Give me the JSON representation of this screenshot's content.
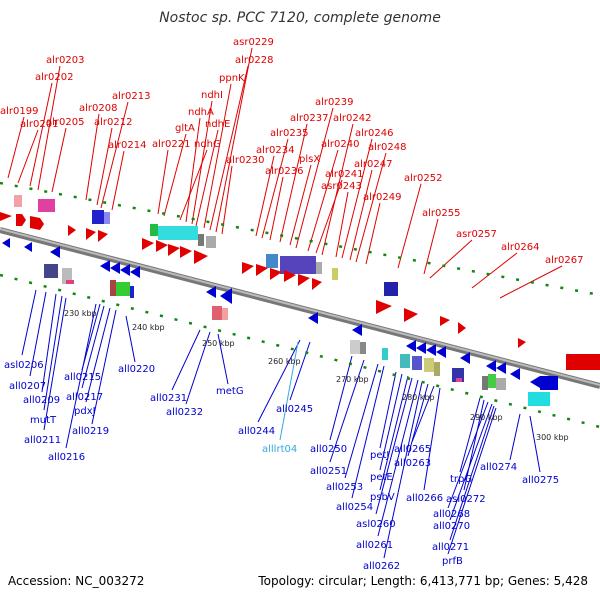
{
  "title": "Nostoc sp. PCC 7120, complete genome",
  "footer": {
    "accession": "Accession: NC_003272",
    "topology": "Topology: circular; Length: 6,413,771 bp; Genes: 5,428"
  },
  "colors": {
    "forward": "#e00000",
    "reverse": "#0000d0",
    "rna": "#33aadd",
    "ticks": "#118811",
    "axis": "#888888"
  },
  "forward_labels": [
    "alr0199",
    "alr0201",
    "alr0202",
    "alr0203",
    "alr0205",
    "alr0208",
    "alr0212",
    "alr0213",
    "alr0214",
    "alr0221",
    "gltA",
    "ndhG",
    "ndhA",
    "ndhI",
    "ndhE",
    "ppnK",
    "alr0228",
    "asr0229",
    "alr0230",
    "alr0234",
    "alr0235",
    "alr0236",
    "alr0237",
    "plsX",
    "alr0239",
    "alr0240",
    "alr0241",
    "alr0242",
    "asr0243",
    "alr0246",
    "alr0247",
    "alr0248",
    "alr0249",
    "alr0252",
    "alr0255",
    "asr0257",
    "alr0264",
    "alr0267"
  ],
  "reverse_labels": [
    "asl0206",
    "all0207",
    "all0209",
    "mutT",
    "all0211",
    "all0215",
    "all0217",
    "pdxJ",
    "all0219",
    "all0216",
    "all0220",
    "all0231",
    "all0232",
    "metG",
    "all0244",
    "all0245",
    "alllrt04",
    "all0250",
    "all0251",
    "all0253",
    "all0254",
    "petJ",
    "petE",
    "psbV",
    "asl0260",
    "all0261",
    "all0262",
    "all0263",
    "all0265",
    "all0266",
    "trpG",
    "asl0272",
    "all0268",
    "all0270",
    "all0271",
    "prfB",
    "all0274",
    "all0275"
  ],
  "kbp_labels": [
    "230 kbp",
    "240 kbp",
    "250 kbp",
    "260 kbp",
    "270 kbp",
    "280 kbp",
    "290 kbp",
    "300 kbp"
  ]
}
